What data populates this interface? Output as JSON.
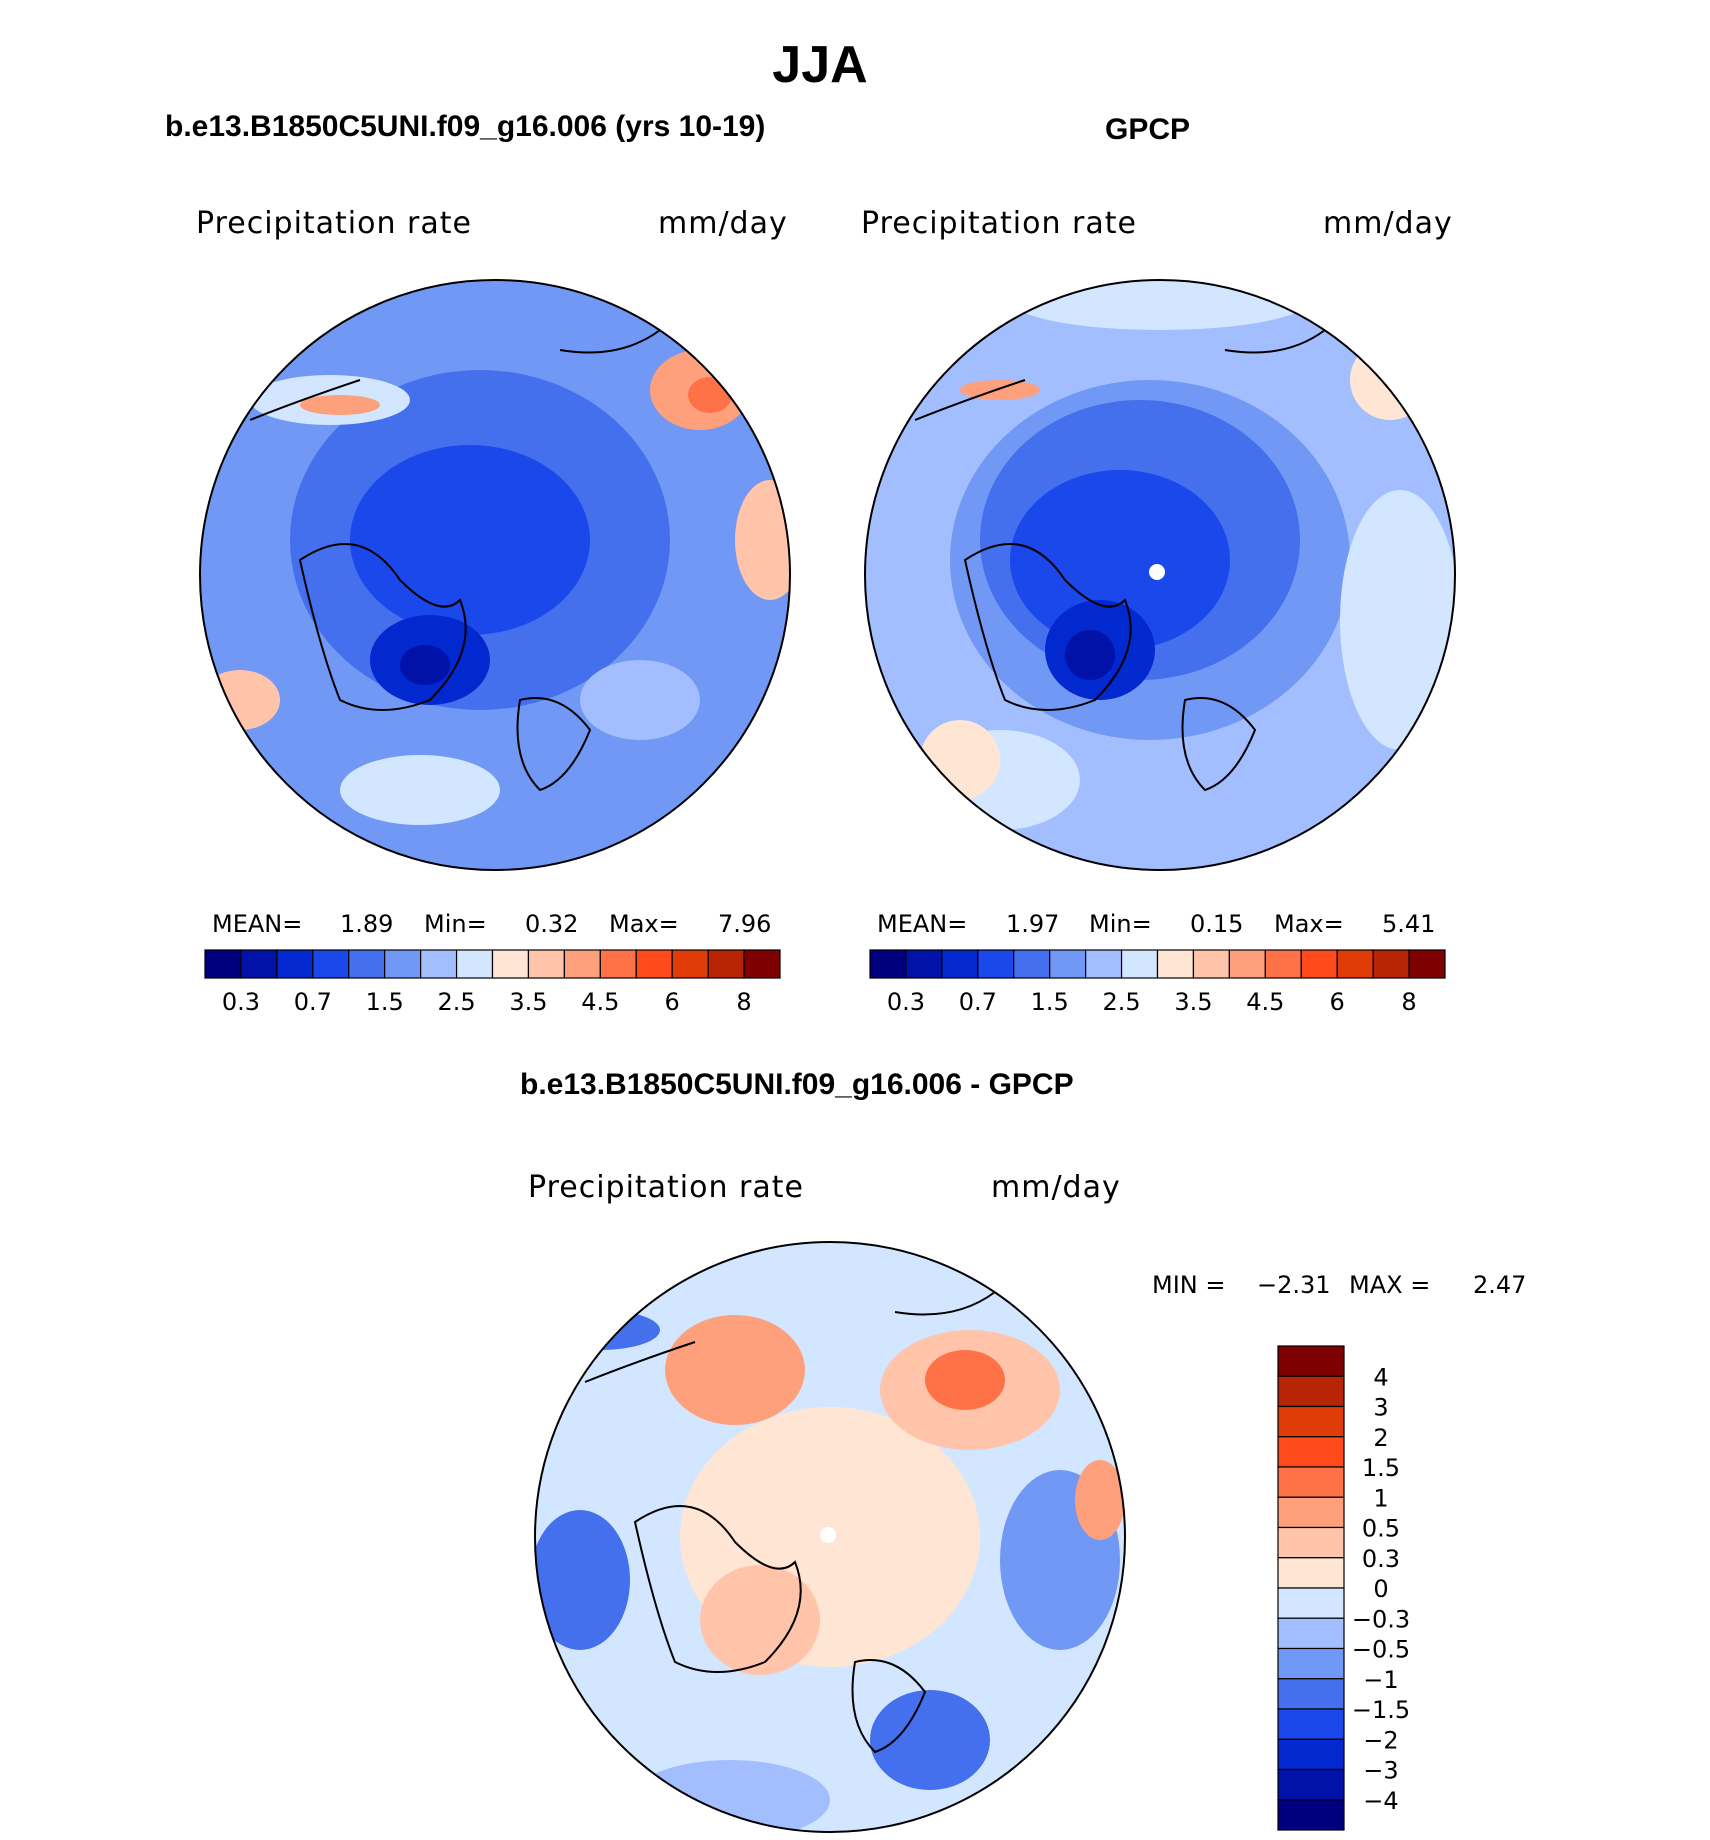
{
  "title": "JJA",
  "colors": {
    "abs_levels": [
      "#00007f",
      "#0012a8",
      "#0228d0",
      "#1a48ea",
      "#4470ee",
      "#7098f4",
      "#a2beff",
      "#d2e6ff",
      "#ffe6d4",
      "#ffc4aa",
      "#ffa07c",
      "#ff7248",
      "#ff4a1c",
      "#e03c08",
      "#b82404",
      "#7f0000"
    ],
    "diff_levels": [
      "#00007f",
      "#0012a8",
      "#0228d0",
      "#1a48ea",
      "#4470ee",
      "#7098f4",
      "#a2beff",
      "#d2e6ff",
      "#ffe6d4",
      "#ffc4aa",
      "#ffa07c",
      "#ff7248",
      "#ff4a1c",
      "#e03c08",
      "#b82404",
      "#7f0000"
    ]
  },
  "chart_data": [
    {
      "type": "heatmap",
      "title": "b.e13.B1850C5UNI.f09_g16.006 (yrs 10-19)",
      "variable": "Precipitation  rate",
      "units": "mm/day",
      "projection": "north-polar-stereographic",
      "stats": {
        "mean_label": "MEAN=",
        "mean": "1.89",
        "min_label": "Min=",
        "min": "0.32",
        "max_label": "Max=",
        "max": "7.96"
      },
      "colorbar": {
        "orientation": "horizontal",
        "labels": [
          "0.3",
          "0.7",
          "1.5",
          "2.5",
          "3.5",
          "4.5",
          "6",
          "8"
        ]
      }
    },
    {
      "type": "heatmap",
      "title": "GPCP",
      "variable": "Precipitation  rate",
      "units": "mm/day",
      "projection": "north-polar-stereographic",
      "stats": {
        "mean_label": "MEAN=",
        "mean": "1.97",
        "min_label": "Min=",
        "min": "0.15",
        "max_label": "Max=",
        "max": "5.41"
      },
      "colorbar": {
        "orientation": "horizontal",
        "labels": [
          "0.3",
          "0.7",
          "1.5",
          "2.5",
          "3.5",
          "4.5",
          "6",
          "8"
        ]
      }
    },
    {
      "type": "heatmap",
      "title": "b.e13.B1850C5UNI.f09_g16.006 - GPCP",
      "variable": "Precipitation  rate",
      "units": "mm/day",
      "projection": "north-polar-stereographic",
      "stats": {
        "min_label": "MIN  =",
        "min": "−2.31",
        "max_label": "MAX  =",
        "max": "2.47"
      },
      "colorbar": {
        "orientation": "vertical",
        "labels": [
          "4",
          "3",
          "2",
          "1.5",
          "1",
          "0.5",
          "0.3",
          "0",
          "−0.3",
          "−0.5",
          "−1",
          "−1.5",
          "−2",
          "−3",
          "−4"
        ]
      }
    }
  ]
}
